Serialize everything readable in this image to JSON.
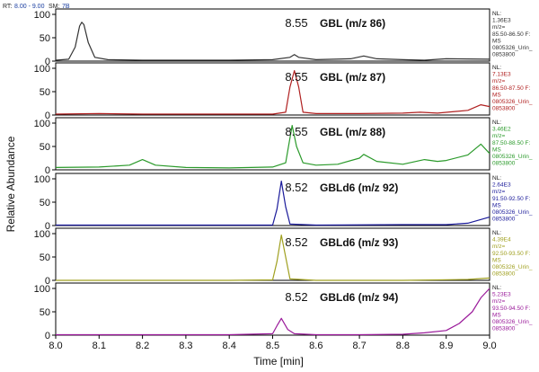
{
  "header": {
    "rt_label": "RT:",
    "rt_value": "8.00 - 9.00",
    "sm_label": "SM:",
    "sm_value": "7B"
  },
  "chart_data": {
    "type": "line",
    "xlabel": "Time [min]",
    "ylabel": "Relative Abundance",
    "xlim": [
      8.0,
      9.0
    ],
    "xticks": [
      "8.0",
      "8.1",
      "8.2",
      "8.3",
      "8.4",
      "8.5",
      "8.6",
      "8.7",
      "8.8",
      "8.9",
      "9.0"
    ],
    "ylim": [
      0,
      100
    ],
    "yticks": [
      "0",
      "50",
      "100"
    ],
    "panels": [
      {
        "label": "GBL (m/z 86)",
        "rt": "8.55",
        "color": "#333333",
        "info": [
          "NL:",
          "1.36E3",
          "m/z=",
          "85.50-86.50 F:",
          "MS",
          "0805326_Urin_",
          "0853800"
        ],
        "x": [
          8.0,
          8.03,
          8.045,
          8.055,
          8.06,
          8.065,
          8.075,
          8.09,
          8.12,
          8.2,
          8.3,
          8.4,
          8.5,
          8.54,
          8.55,
          8.56,
          8.6,
          8.68,
          8.71,
          8.74,
          8.8,
          8.85,
          8.9,
          9.0
        ],
        "y": [
          2,
          4,
          30,
          75,
          83,
          78,
          40,
          8,
          3,
          2,
          2,
          2,
          3,
          8,
          14,
          8,
          3,
          5,
          11,
          5,
          3,
          2,
          5,
          4
        ]
      },
      {
        "label": "GBL (m/z 87)",
        "rt": "8.55",
        "color": "#b02020",
        "info": [
          "NL:",
          "7.13E3",
          "m/z=",
          "86.50-87.50 F:",
          "MS",
          "0805326_Urin_",
          "0853800"
        ],
        "x": [
          8.0,
          8.1,
          8.2,
          8.3,
          8.4,
          8.5,
          8.53,
          8.54,
          8.55,
          8.56,
          8.57,
          8.6,
          8.7,
          8.8,
          8.84,
          8.88,
          8.95,
          8.98,
          9.0
        ],
        "y": [
          2,
          3,
          2,
          2,
          2,
          2,
          6,
          60,
          95,
          60,
          6,
          3,
          3,
          4,
          6,
          4,
          10,
          22,
          18
        ]
      },
      {
        "label": "GBL (m/z 88)",
        "rt": "8.55",
        "color": "#2a9a2a",
        "info": [
          "NL:",
          "3.46E2",
          "m/z=",
          "87.50-88.50 F:",
          "MS",
          "0805326_Urin_",
          "0853800"
        ],
        "x": [
          8.0,
          8.1,
          8.17,
          8.2,
          8.23,
          8.3,
          8.4,
          8.5,
          8.53,
          8.545,
          8.555,
          8.57,
          8.6,
          8.65,
          8.7,
          8.71,
          8.74,
          8.8,
          8.85,
          8.88,
          8.9,
          8.95,
          8.98,
          9.0
        ],
        "y": [
          5,
          6,
          10,
          22,
          10,
          5,
          4,
          6,
          15,
          95,
          50,
          15,
          10,
          12,
          25,
          33,
          18,
          12,
          22,
          18,
          20,
          32,
          55,
          35
        ]
      },
      {
        "label": "GBLd6 (m/z 92)",
        "rt": "8.52",
        "color": "#1a1a9a",
        "info": [
          "NL:",
          "2.64E3",
          "m/z=",
          "91.50-92.50 F:",
          "MS",
          "0805326_Urin_",
          "0853800"
        ],
        "x": [
          8.0,
          8.4,
          8.5,
          8.51,
          8.52,
          8.53,
          8.54,
          8.6,
          8.8,
          8.9,
          8.95,
          9.0
        ],
        "y": [
          1,
          1,
          1,
          35,
          95,
          40,
          3,
          1,
          2,
          2,
          5,
          18
        ]
      },
      {
        "label": "GBLd6 (m/z 93)",
        "rt": "8.52",
        "color": "#a0a020",
        "info": [
          "NL:",
          "4.39E4",
          "m/z=",
          "92.50-93.50 F:",
          "MS",
          "0805326_Urin_",
          "0853800"
        ],
        "x": [
          8.0,
          8.4,
          8.5,
          8.51,
          8.52,
          8.53,
          8.54,
          8.6,
          8.8,
          8.95,
          9.0
        ],
        "y": [
          0,
          0,
          1,
          40,
          97,
          50,
          3,
          0,
          0,
          2,
          5
        ]
      },
      {
        "label": "GBLd6 (m/z 94)",
        "rt": "8.52",
        "color": "#9a1a9a",
        "info": [
          "NL:",
          "5.23E3",
          "m/z=",
          "93.50-94.50 F:",
          "MS",
          "0805326_Urin_",
          "0853800"
        ],
        "x": [
          8.0,
          8.3,
          8.4,
          8.5,
          8.51,
          8.52,
          8.535,
          8.55,
          8.6,
          8.7,
          8.8,
          8.85,
          8.9,
          8.93,
          8.96,
          8.98,
          9.0
        ],
        "y": [
          1,
          1,
          1,
          3,
          20,
          36,
          12,
          3,
          1,
          1,
          2,
          5,
          10,
          25,
          50,
          80,
          100
        ]
      }
    ]
  }
}
